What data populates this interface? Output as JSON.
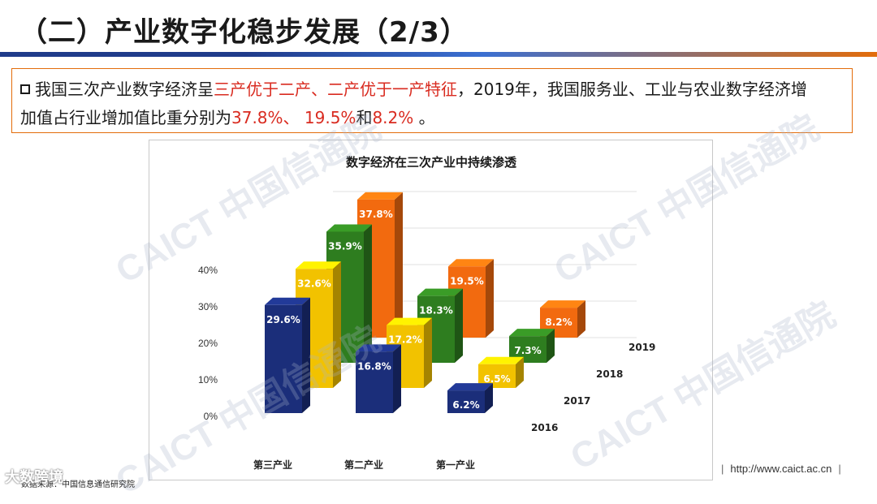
{
  "slide": {
    "title": "（二）产业数字化稳步发展（2/3）"
  },
  "summary": {
    "part1": "我国三次产业数字经济呈",
    "highlight1": "三产优于二产、二产优于一产特征",
    "part2": "，2019年，我国服务业、工业与农业数字经济增",
    "part3": "加值占行业增加值比重分别为",
    "highlight2": "37.8%、 19.5%",
    "part4": "和",
    "highlight3": "8.2%",
    "part5": " 。"
  },
  "chart_data": {
    "type": "bar",
    "title": "数字经济在三次产业中持续渗透",
    "categories": [
      "第三产业",
      "第二产业",
      "第一产业"
    ],
    "series": [
      {
        "name": "2016",
        "values": [
          29.6,
          16.8,
          6.2
        ],
        "labels": [
          "29.6%",
          "16.8%",
          "6.2%"
        ],
        "color": "#1b2e7a"
      },
      {
        "name": "2017",
        "values": [
          32.6,
          17.2,
          6.5
        ],
        "labels": [
          "32.6%",
          "17.2%",
          "6.5%"
        ],
        "color": "#f2c200"
      },
      {
        "name": "2018",
        "values": [
          35.9,
          18.3,
          7.3
        ],
        "labels": [
          "35.9%",
          "18.3%",
          "7.3%"
        ],
        "color": "#2e7d1f"
      },
      {
        "name": "2019",
        "values": [
          37.8,
          19.5,
          8.2
        ],
        "labels": [
          "37.8%",
          "19.5%",
          "8.2%"
        ],
        "color": "#f26a0f"
      }
    ],
    "yticks": [
      "0%",
      "10%",
      "20%",
      "30%",
      "40%"
    ],
    "ylim": [
      0,
      40
    ],
    "grid": true
  },
  "footer": {
    "source": "数据来源：中国信息通信研究院",
    "url": "http://www.caict.ac.cn",
    "sep": "|",
    "brand": "大数跨境"
  },
  "watermark": {
    "text": "CAICT 中国信通院"
  }
}
